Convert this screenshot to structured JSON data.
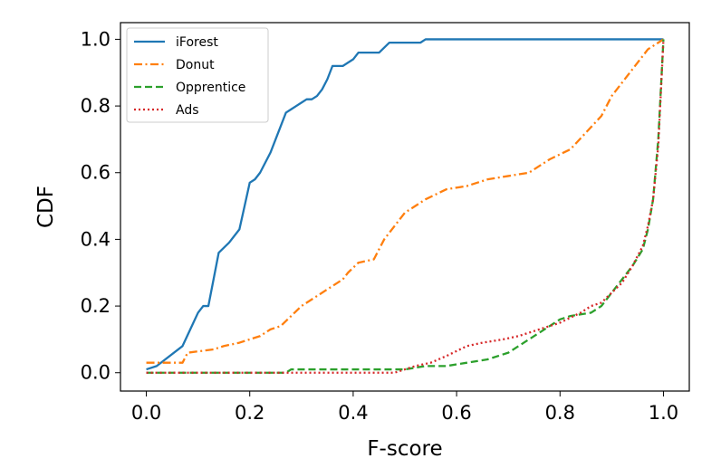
{
  "chart_data": {
    "type": "line",
    "title": "",
    "xlabel": "F-score",
    "ylabel": "CDF",
    "xlim": [
      -0.05,
      1.05
    ],
    "ylim": [
      -0.055,
      1.05
    ],
    "xticks": [
      "0.0",
      "0.2",
      "0.4",
      "0.6",
      "0.8",
      "1.0"
    ],
    "yticks": [
      "0.0",
      "0.2",
      "0.4",
      "0.6",
      "0.8",
      "1.0"
    ],
    "grid": false,
    "legend_position": "top-left",
    "series": [
      {
        "name": "iForest",
        "color": "#1f77b4",
        "style": "solid",
        "x": [
          0.0,
          0.02,
          0.07,
          0.085,
          0.1,
          0.11,
          0.12,
          0.13,
          0.14,
          0.16,
          0.18,
          0.19,
          0.2,
          0.21,
          0.22,
          0.24,
          0.26,
          0.27,
          0.28,
          0.29,
          0.3,
          0.31,
          0.32,
          0.33,
          0.34,
          0.35,
          0.36,
          0.38,
          0.4,
          0.41,
          0.43,
          0.45,
          0.47,
          0.49,
          0.53,
          0.54,
          0.6,
          1.0
        ],
        "y": [
          0.01,
          0.02,
          0.08,
          0.13,
          0.18,
          0.2,
          0.2,
          0.28,
          0.36,
          0.39,
          0.43,
          0.5,
          0.57,
          0.58,
          0.6,
          0.66,
          0.74,
          0.78,
          0.79,
          0.8,
          0.81,
          0.82,
          0.82,
          0.83,
          0.85,
          0.88,
          0.92,
          0.92,
          0.94,
          0.96,
          0.96,
          0.96,
          0.99,
          0.99,
          0.99,
          1.0,
          1.0,
          1.0
        ]
      },
      {
        "name": "Donut",
        "color": "#ff7f0e",
        "style": "dashdot",
        "x": [
          0.0,
          0.07,
          0.08,
          0.13,
          0.15,
          0.18,
          0.2,
          0.22,
          0.24,
          0.26,
          0.3,
          0.33,
          0.36,
          0.38,
          0.39,
          0.41,
          0.44,
          0.45,
          0.46,
          0.5,
          0.54,
          0.58,
          0.62,
          0.66,
          0.7,
          0.74,
          0.78,
          0.82,
          0.85,
          0.88,
          0.9,
          0.92,
          0.95,
          0.97,
          0.99,
          1.0
        ],
        "y": [
          0.03,
          0.03,
          0.06,
          0.07,
          0.08,
          0.09,
          0.1,
          0.11,
          0.13,
          0.14,
          0.2,
          0.23,
          0.26,
          0.28,
          0.3,
          0.33,
          0.34,
          0.37,
          0.4,
          0.48,
          0.52,
          0.55,
          0.56,
          0.58,
          0.59,
          0.6,
          0.64,
          0.67,
          0.72,
          0.77,
          0.83,
          0.87,
          0.93,
          0.97,
          0.99,
          1.0
        ]
      },
      {
        "name": "Opprentice",
        "color": "#2ca02c",
        "style": "dashed",
        "x": [
          0.0,
          0.2,
          0.27,
          0.28,
          0.5,
          0.54,
          0.58,
          0.62,
          0.66,
          0.7,
          0.73,
          0.76,
          0.78,
          0.8,
          0.82,
          0.86,
          0.88,
          0.9,
          0.92,
          0.94,
          0.96,
          0.97,
          0.98,
          0.99,
          1.0
        ],
        "y": [
          0.0,
          0.0,
          0.0,
          0.01,
          0.01,
          0.02,
          0.02,
          0.03,
          0.04,
          0.06,
          0.09,
          0.12,
          0.14,
          0.16,
          0.17,
          0.18,
          0.2,
          0.24,
          0.28,
          0.32,
          0.37,
          0.43,
          0.52,
          0.7,
          1.0
        ]
      },
      {
        "name": "Ads",
        "color": "#d62728",
        "style": "dotted",
        "x": [
          0.0,
          0.3,
          0.48,
          0.5,
          0.52,
          0.55,
          0.58,
          0.62,
          0.65,
          0.69,
          0.72,
          0.76,
          0.8,
          0.84,
          0.86,
          0.88,
          0.9,
          0.92,
          0.94,
          0.96,
          0.97,
          0.98,
          0.99,
          1.0
        ],
        "y": [
          0.0,
          0.0,
          0.0,
          0.01,
          0.02,
          0.03,
          0.05,
          0.08,
          0.09,
          0.1,
          0.11,
          0.13,
          0.15,
          0.18,
          0.2,
          0.21,
          0.24,
          0.27,
          0.32,
          0.38,
          0.44,
          0.52,
          0.68,
          1.0
        ]
      }
    ]
  }
}
